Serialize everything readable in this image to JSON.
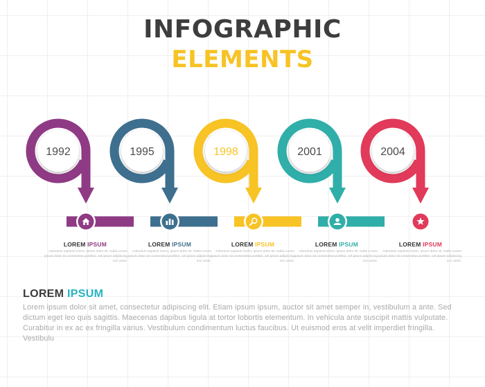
{
  "header": {
    "title": "INFOGRAPHIC",
    "subtitle": "ELEMENTS"
  },
  "colors": {
    "title": "#3d3d3d",
    "subtitle": "#f7c325",
    "accent": "#26b3c1"
  },
  "steps": [
    {
      "year": "1992",
      "title_a": "LOREM ",
      "title_b": "IPSUM",
      "icon": "home-icon",
      "color": "#8f3a84",
      "desc": "Adendum sapienti lorem, ipsum dolor sit. Nulla Lorem ipsum dolor sit consectetur porttitor, vel ipsum adipiscing non amet."
    },
    {
      "year": "1995",
      "title_a": "LOREM ",
      "title_b": "IPSUM",
      "icon": "bar-chart-icon",
      "color": "#3e6f8e",
      "desc": "Adendum sapienti lorem, ipsum dolor sit. Nulla Lorem ipsum dolor sit consectetur porttitor, vel ipsum adipiscing non amet."
    },
    {
      "year": "1998",
      "title_a": "LOREM ",
      "title_b": "IPSUM",
      "icon": "search-icon",
      "color": "#f7c325",
      "desc": "Adendum sapienti lorem, ipsum dolor sit. Nulla Lorem ipsum dolor sit consectetur porttitor, vel ipsum adipiscing non amet."
    },
    {
      "year": "2001",
      "title_a": "LOREM ",
      "title_b": "IPSUM",
      "icon": "user-icon",
      "color": "#30aea9",
      "desc": "Adendum sapienti lorem, ipsum dolor sit. Nulla Lorem ipsum dolor sit consectetur porttitor, vel ipsum adipiscing non amet."
    },
    {
      "year": "2004",
      "title_a": "LOREM ",
      "title_b": "IPSUM",
      "icon": "star-icon",
      "color": "#e13a5a",
      "desc": "Adendum sapienti lorem, ipsum dolor sit. Nulla Lorem ipsum dolor sit consectetur porttitor, vel ipsum adipiscing non amet."
    }
  ],
  "footer": {
    "heading_a": "LOREM ",
    "heading_b": "IPSUM",
    "text": "Lorem ipsum dolor sit amet, consectetur adipiscing elit. Etiam ipsum ipsum, auctor sit amet semper in, vestibulum a ante. Sed dictum eget leo quis sagittis. Maecenas dapibus ligula at tortor lobortis elementum. In vehicula ante suscipit mattis vulputate. Curabitur in ex ac ex fringilla varius. Vestibulum condimentum luctus faucibus. Ut euismod eros at velit imperdiet fringilla. Vestibulu"
  }
}
